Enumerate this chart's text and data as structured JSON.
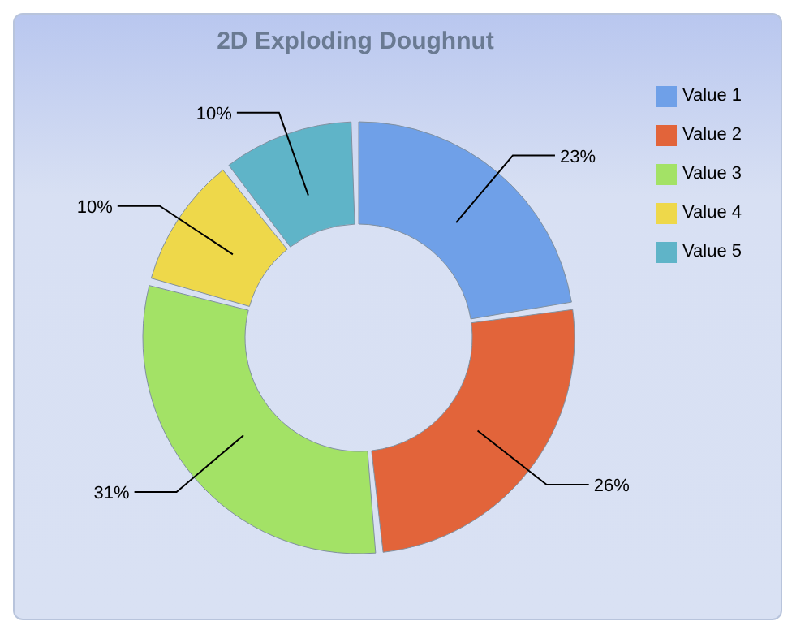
{
  "chart_data": {
    "type": "donut",
    "title": "2D Exploding Doughnut",
    "categories": [
      "Value 1",
      "Value 2",
      "Value 3",
      "Value 4",
      "Value 5"
    ],
    "values": [
      23,
      26,
      31,
      10,
      10
    ],
    "colors": [
      "#6fa0e8",
      "#e2643a",
      "#a3e266",
      "#eed84a",
      "#5fb4c8"
    ],
    "value_labels": [
      "23%",
      "26%",
      "31%",
      "10%",
      "10%"
    ],
    "legend": "top right"
  }
}
